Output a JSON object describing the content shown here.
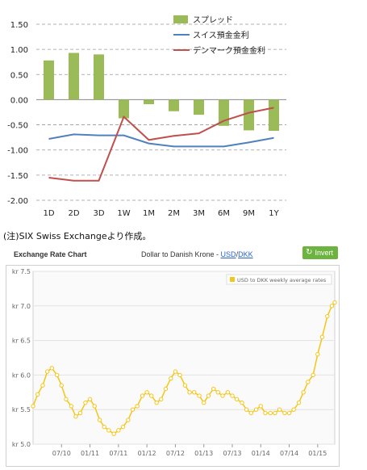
{
  "chart_data": [
    {
      "type": "bar+line",
      "categories": [
        "1D",
        "2D",
        "3D",
        "1W",
        "1M",
        "2M",
        "3M",
        "6M",
        "9M",
        "1Y"
      ],
      "yticks": [
        "1.50",
        "1.00",
        "0.50",
        "0.00",
        "-0.50",
        "-1.00",
        "-1.50",
        "-2.00"
      ],
      "ylim": [
        -2.0,
        1.5
      ],
      "series": [
        {
          "name": "スプレッド",
          "kind": "bar",
          "color": "#9bbb59",
          "values": [
            0.78,
            0.93,
            0.9,
            -0.37,
            -0.09,
            -0.23,
            -0.3,
            -0.52,
            -0.61,
            -0.62
          ]
        },
        {
          "name": "スイス預金金利",
          "kind": "line",
          "color": "#4f81bd",
          "values": [
            -0.78,
            -0.69,
            -0.71,
            -0.71,
            -0.87,
            -0.93,
            -0.93,
            -0.93,
            -0.85,
            -0.76
          ]
        },
        {
          "name": "デンマーク預金金利",
          "kind": "line",
          "color": "#c0504d",
          "values": [
            -1.55,
            -1.61,
            -1.61,
            -0.34,
            -0.8,
            -0.72,
            -0.67,
            -0.42,
            -0.26,
            -0.16
          ]
        }
      ]
    },
    {
      "type": "line",
      "title": "Exchange Rate Chart",
      "series_name": "USD to DKK weekly average rates",
      "ylim": [
        5.0,
        7.5
      ],
      "yticks": [
        "kr 7.5",
        "kr 7.0",
        "kr 6.5",
        "kr 6.0",
        "kr 5.5",
        "kr 5.0"
      ],
      "ytick_values": [
        7.5,
        7.0,
        6.5,
        6.0,
        5.5,
        5.0
      ],
      "xticks": [
        "07/10",
        "01/11",
        "07/11",
        "01/12",
        "07/12",
        "01/13",
        "07/13",
        "01/14",
        "07/14",
        "01/15"
      ],
      "xlim": [
        2010.0,
        2015.3
      ],
      "color": "#f5c518",
      "points": [
        [
          2010.0,
          5.55
        ],
        [
          2010.08,
          5.72
        ],
        [
          2010.17,
          5.85
        ],
        [
          2010.25,
          6.05
        ],
        [
          2010.33,
          6.1
        ],
        [
          2010.42,
          6.0
        ],
        [
          2010.5,
          5.85
        ],
        [
          2010.58,
          5.65
        ],
        [
          2010.67,
          5.55
        ],
        [
          2010.75,
          5.4
        ],
        [
          2010.83,
          5.45
        ],
        [
          2010.92,
          5.6
        ],
        [
          2011.0,
          5.65
        ],
        [
          2011.08,
          5.55
        ],
        [
          2011.17,
          5.35
        ],
        [
          2011.25,
          5.25
        ],
        [
          2011.33,
          5.2
        ],
        [
          2011.42,
          5.15
        ],
        [
          2011.5,
          5.2
        ],
        [
          2011.58,
          5.25
        ],
        [
          2011.67,
          5.35
        ],
        [
          2011.75,
          5.5
        ],
        [
          2011.83,
          5.55
        ],
        [
          2011.92,
          5.7
        ],
        [
          2012.0,
          5.75
        ],
        [
          2012.08,
          5.7
        ],
        [
          2012.17,
          5.6
        ],
        [
          2012.25,
          5.65
        ],
        [
          2012.33,
          5.8
        ],
        [
          2012.42,
          5.95
        ],
        [
          2012.5,
          6.05
        ],
        [
          2012.58,
          6.0
        ],
        [
          2012.67,
          5.85
        ],
        [
          2012.75,
          5.75
        ],
        [
          2012.83,
          5.75
        ],
        [
          2012.92,
          5.7
        ],
        [
          2013.0,
          5.6
        ],
        [
          2013.08,
          5.7
        ],
        [
          2013.17,
          5.8
        ],
        [
          2013.25,
          5.75
        ],
        [
          2013.33,
          5.7
        ],
        [
          2013.42,
          5.75
        ],
        [
          2013.5,
          5.7
        ],
        [
          2013.58,
          5.65
        ],
        [
          2013.67,
          5.6
        ],
        [
          2013.75,
          5.5
        ],
        [
          2013.83,
          5.45
        ],
        [
          2013.92,
          5.5
        ],
        [
          2014.0,
          5.55
        ],
        [
          2014.08,
          5.45
        ],
        [
          2014.17,
          5.45
        ],
        [
          2014.25,
          5.45
        ],
        [
          2014.33,
          5.5
        ],
        [
          2014.42,
          5.45
        ],
        [
          2014.5,
          5.45
        ],
        [
          2014.58,
          5.5
        ],
        [
          2014.67,
          5.6
        ],
        [
          2014.75,
          5.75
        ],
        [
          2014.83,
          5.9
        ],
        [
          2014.92,
          6.0
        ],
        [
          2015.0,
          6.3
        ],
        [
          2015.08,
          6.55
        ],
        [
          2015.17,
          6.85
        ],
        [
          2015.25,
          7.0
        ],
        [
          2015.3,
          7.05
        ]
      ]
    }
  ],
  "note": "(注)SIX Swiss Exchangeより作成。",
  "fx_panel": {
    "title": "Exchange Rate Chart",
    "pair_prefix": "Dollar to Danish Krone - ",
    "pair_a": "USD",
    "pair_sep": "/",
    "pair_b": "DKK",
    "invert_label": "Invert",
    "invert_icon": "refresh-icon"
  },
  "colors": {
    "accent_green": "#6db33f",
    "link_blue": "#2a62c9",
    "grid": "#dddddd"
  }
}
